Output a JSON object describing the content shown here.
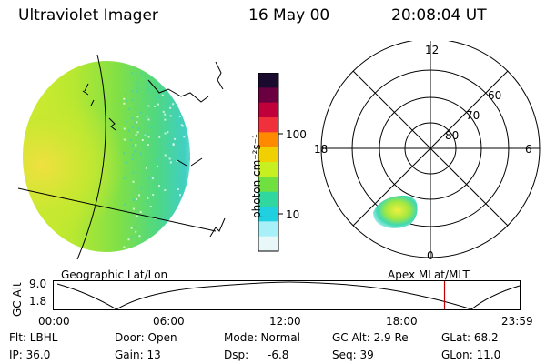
{
  "header": {
    "instrument": "Ultraviolet Imager",
    "date": "16 May 00",
    "time": "20:08:04 UT"
  },
  "colorbar": {
    "unit_label": "photon cm⁻²s⁻¹",
    "tick_labels": [
      "100",
      "10"
    ],
    "scale": "log",
    "colors": [
      "#1a0a2e",
      "#6a0040",
      "#c0003a",
      "#f0303a",
      "#ff8a00",
      "#f0d000",
      "#c8f020",
      "#70e040",
      "#30d8a0",
      "#20d0e0",
      "#a8f0f8",
      "#e8f8f8"
    ]
  },
  "polar_plot": {
    "mlt_labels": {
      "top": "12",
      "bottom": "0",
      "left": "18",
      "right": "6"
    },
    "lat_labels": [
      "60",
      "70",
      "80"
    ]
  },
  "left_caption": "Geographic Lat/Lon",
  "right_caption": "Apex MLat/MLT",
  "altitude_plot": {
    "ylabel": "GC Alt",
    "yticks": [
      "9.0",
      "1.8"
    ],
    "xticks": [
      "00:00",
      "06:00",
      "12:00",
      "18:00",
      "23:59"
    ],
    "marker_time": "20:08",
    "marker_color": "#c00000"
  },
  "status": {
    "flt": "Flt: LBHL",
    "ip": "IP: 36.0",
    "door": "Door: Open",
    "gain": "Gain: 13",
    "mode": "Mode: Normal",
    "dsp_label": "Dsp:",
    "dsp_value": "-6.8",
    "gcalt": "GC Alt: 2.9 Re",
    "seq": "Seq: 39",
    "glat": "GLat: 68.2",
    "glon": "GLon: 11.0"
  }
}
